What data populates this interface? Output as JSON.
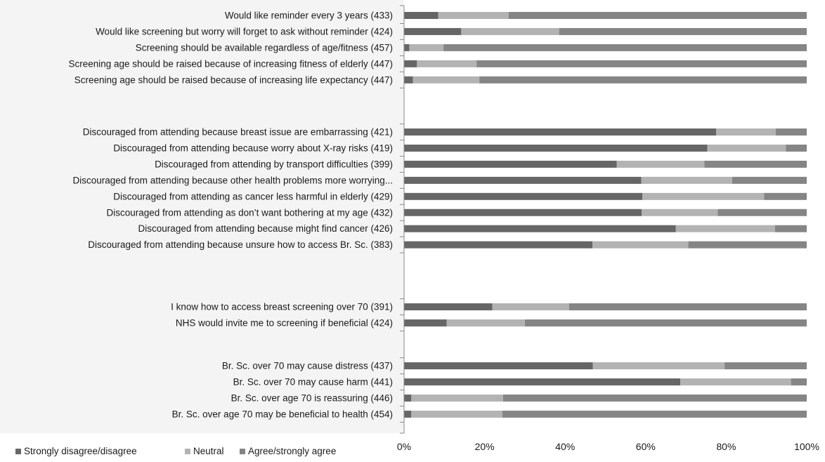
{
  "chart_data": {
    "type": "bar",
    "orientation": "horizontal",
    "stacked": "percent",
    "xlim": [
      0,
      100
    ],
    "x_ticks": [
      "0%",
      "20%",
      "40%",
      "60%",
      "80%",
      "100%"
    ],
    "grid": false,
    "legend_position": "bottom-left",
    "groups": [
      {
        "categories": [
          "Would like reminder every 3 years (433)",
          "Would like screening but worry will forget to ask without reminder (424)",
          "Screening should be available regardless of age/fitness (457)",
          "Screening age should be raised because of increasing fitness of elderly (447)",
          "Screening age should be raised because of increasing life expectancy (447)"
        ],
        "values": [
          [
            8.5,
            17.5,
            74.0
          ],
          [
            14.2,
            24.3,
            61.5
          ],
          [
            1.3,
            8.5,
            90.2
          ],
          [
            3.2,
            14.8,
            82.0
          ],
          [
            2.2,
            16.5,
            81.3
          ]
        ]
      },
      {
        "categories": [
          "Discouraged from attending because breast issue are embarrassing (421)",
          "Discouraged from attending because worry about X-ray risks (419)",
          "Discouraged from attending by transport difficulties (399)",
          "Discouraged from attending because other health problems more worrying...",
          "Discouraged from attending as cancer less harmful in elderly (429)",
          "Discouraged from attending as don’t want bothering at my age (432)",
          "Discouraged from attending because might find cancer (426)",
          "Discouraged from attending because unsure how to access Br. Sc. (383)"
        ],
        "values": [
          [
            77.5,
            14.8,
            7.7
          ],
          [
            75.3,
            19.5,
            5.2
          ],
          [
            52.8,
            21.8,
            25.4
          ],
          [
            58.9,
            22.6,
            18.5
          ],
          [
            59.2,
            30.2,
            10.6
          ],
          [
            59.0,
            18.9,
            22.1
          ],
          [
            67.5,
            24.6,
            7.9
          ],
          [
            46.8,
            23.8,
            29.4
          ]
        ]
      },
      {
        "categories": [
          "I know how to access breast screening over 70 (391)",
          "NHS would invite me to screening if beneficial (424)"
        ],
        "values": [
          [
            21.9,
            19.1,
            59.0
          ],
          [
            10.6,
            19.4,
            70.0
          ]
        ]
      },
      {
        "categories": [
          "Br. Sc. over 70 may cause distress (437)",
          "Br. Sc. over 70 may cause harm (441)",
          "Br. Sc. over age 70 is reassuring (446)",
          "Br. Sc. over age 70 may be beneficial to health (454)"
        ],
        "values": [
          [
            46.9,
            32.7,
            20.4
          ],
          [
            68.6,
            27.5,
            3.9
          ],
          [
            1.8,
            22.8,
            75.4
          ],
          [
            1.8,
            22.6,
            75.6
          ]
        ]
      }
    ],
    "series": [
      {
        "name": "Strongly disagree/disagree",
        "color": "#666666"
      },
      {
        "name": "Neutral",
        "color": "#b3b3b3"
      },
      {
        "name": "Agree/strongly agree",
        "color": "#858585"
      }
    ]
  }
}
